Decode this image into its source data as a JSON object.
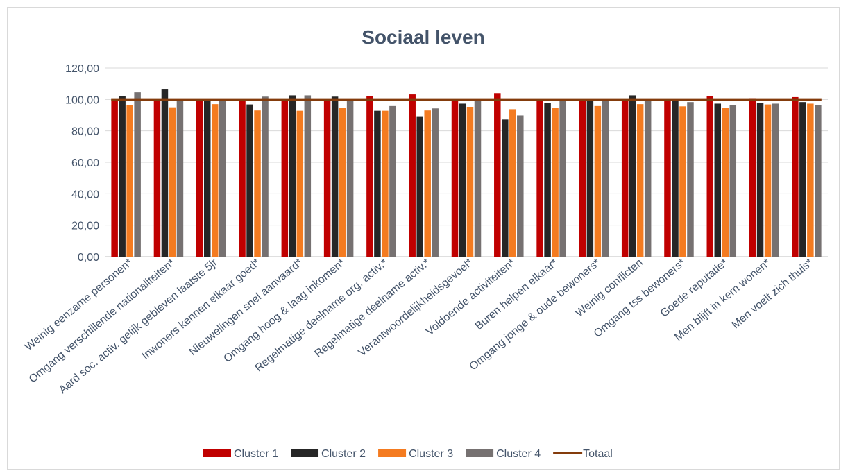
{
  "chart_data": {
    "type": "bar",
    "title": "Sociaal leven",
    "xlabel": "",
    "ylabel": "",
    "ylim": [
      0,
      120
    ],
    "yticks": [
      "0,00",
      "20,00",
      "40,00",
      "60,00",
      "80,00",
      "100,00",
      "120,00"
    ],
    "grid": true,
    "legend_position": "bottom",
    "categories": [
      "Weinig eenzame personen*",
      "Omgang verschillende nationaliteiten*",
      "Aard soc. activ. gelijk gebleven laatste 5jr",
      "Inwoners kennen elkaar goed*",
      "Nieuwelingen snel aanvaard*",
      "Omgang hoog & laag inkomen*",
      "Regelmatige deelname org. activ.*",
      "Regelmatige deelname activ.*",
      "Verantwoordelijkheidsgevoel*",
      "Voldoende activiteiten*",
      "Buren helpen elkaar*",
      "Omgang jonge & oude bewoners*",
      "Weinig conflicten",
      "Omgang tss bewoners*",
      "Goede reputatie*",
      "Men blijft in kern wonen*",
      "Men voelt zich thuis*"
    ],
    "series": [
      {
        "name": "Cluster 1",
        "color": "#c00000",
        "values": [
          99.5,
          99.8,
          100.2,
          99.5,
          100.2,
          99.8,
          102.3,
          103.2,
          100.2,
          104.0,
          100.5,
          100.2,
          99.5,
          100.2,
          102.0,
          100.8,
          101.5
        ]
      },
      {
        "name": "Cluster 2",
        "color": "#262626",
        "values": [
          102.3,
          106.3,
          99.3,
          96.8,
          102.6,
          101.8,
          92.8,
          89.3,
          97.3,
          87.2,
          97.8,
          99.3,
          102.6,
          99.3,
          97.3,
          97.8,
          98.3
        ]
      },
      {
        "name": "Cluster 3",
        "color": "#f47b20",
        "values": [
          96.5,
          95.0,
          97.0,
          93.0,
          92.8,
          94.8,
          92.8,
          93.0,
          95.3,
          93.8,
          94.8,
          95.8,
          97.0,
          95.6,
          94.8,
          96.8,
          97.3
        ]
      },
      {
        "name": "Cluster 4",
        "color": "#767171",
        "values": [
          104.5,
          100.0,
          99.5,
          101.8,
          102.6,
          99.3,
          95.8,
          94.3,
          99.3,
          89.8,
          99.3,
          99.8,
          100.3,
          98.3,
          96.3,
          97.3,
          96.3
        ]
      }
    ],
    "reference_series": {
      "name": "Totaal",
      "type": "line",
      "color": "#843c0c",
      "value": 100
    }
  }
}
